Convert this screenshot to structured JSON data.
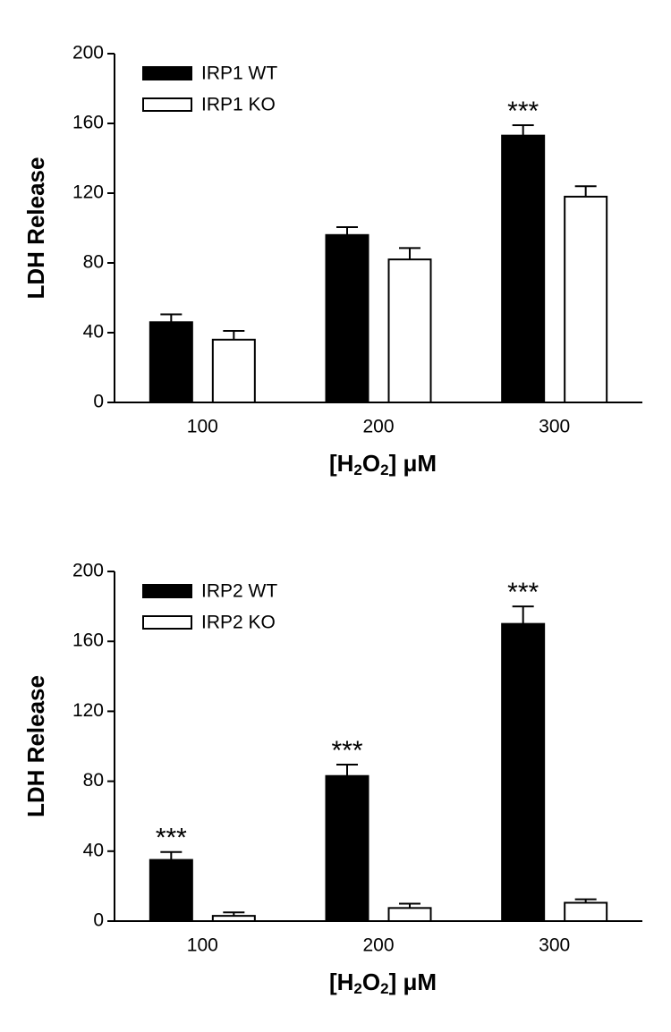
{
  "chart_data": [
    {
      "type": "bar",
      "ylabel": "LDH Release",
      "xlabel_parts": [
        "[H",
        "2",
        "O",
        "2",
        "] μM"
      ],
      "categories": [
        "100",
        "200",
        "300"
      ],
      "series": [
        {
          "name": "IRP1 WT",
          "color": "#000000",
          "values": [
            46,
            96,
            153
          ],
          "errors": [
            4.5,
            4.5,
            6
          ],
          "significance": [
            null,
            null,
            "***"
          ]
        },
        {
          "name": "IRP1 KO",
          "color": "#ffffff",
          "values": [
            36,
            82,
            118
          ],
          "errors": [
            5,
            6.5,
            6
          ],
          "significance": [
            null,
            null,
            null
          ]
        }
      ],
      "ylim": [
        0,
        200
      ],
      "yticks": [
        0,
        40,
        80,
        120,
        160,
        200
      ],
      "legend": "upper left"
    },
    {
      "type": "bar",
      "ylabel": "LDH Release",
      "xlabel_parts": [
        "[H",
        "2",
        "O",
        "2",
        "] μM"
      ],
      "categories": [
        "100",
        "200",
        "300"
      ],
      "series": [
        {
          "name": "IRP2 WT",
          "color": "#000000",
          "values": [
            35,
            83,
            170
          ],
          "errors": [
            4.5,
            6.5,
            10
          ],
          "significance": [
            "***",
            "***",
            "***"
          ]
        },
        {
          "name": "IRP2 KO",
          "color": "#ffffff",
          "values": [
            3,
            7.5,
            10.5
          ],
          "errors": [
            2,
            2.5,
            2
          ],
          "significance": [
            null,
            null,
            null
          ]
        }
      ],
      "ylim": [
        0,
        200
      ],
      "yticks": [
        0,
        40,
        80,
        120,
        160,
        200
      ],
      "legend": "upper left"
    }
  ]
}
